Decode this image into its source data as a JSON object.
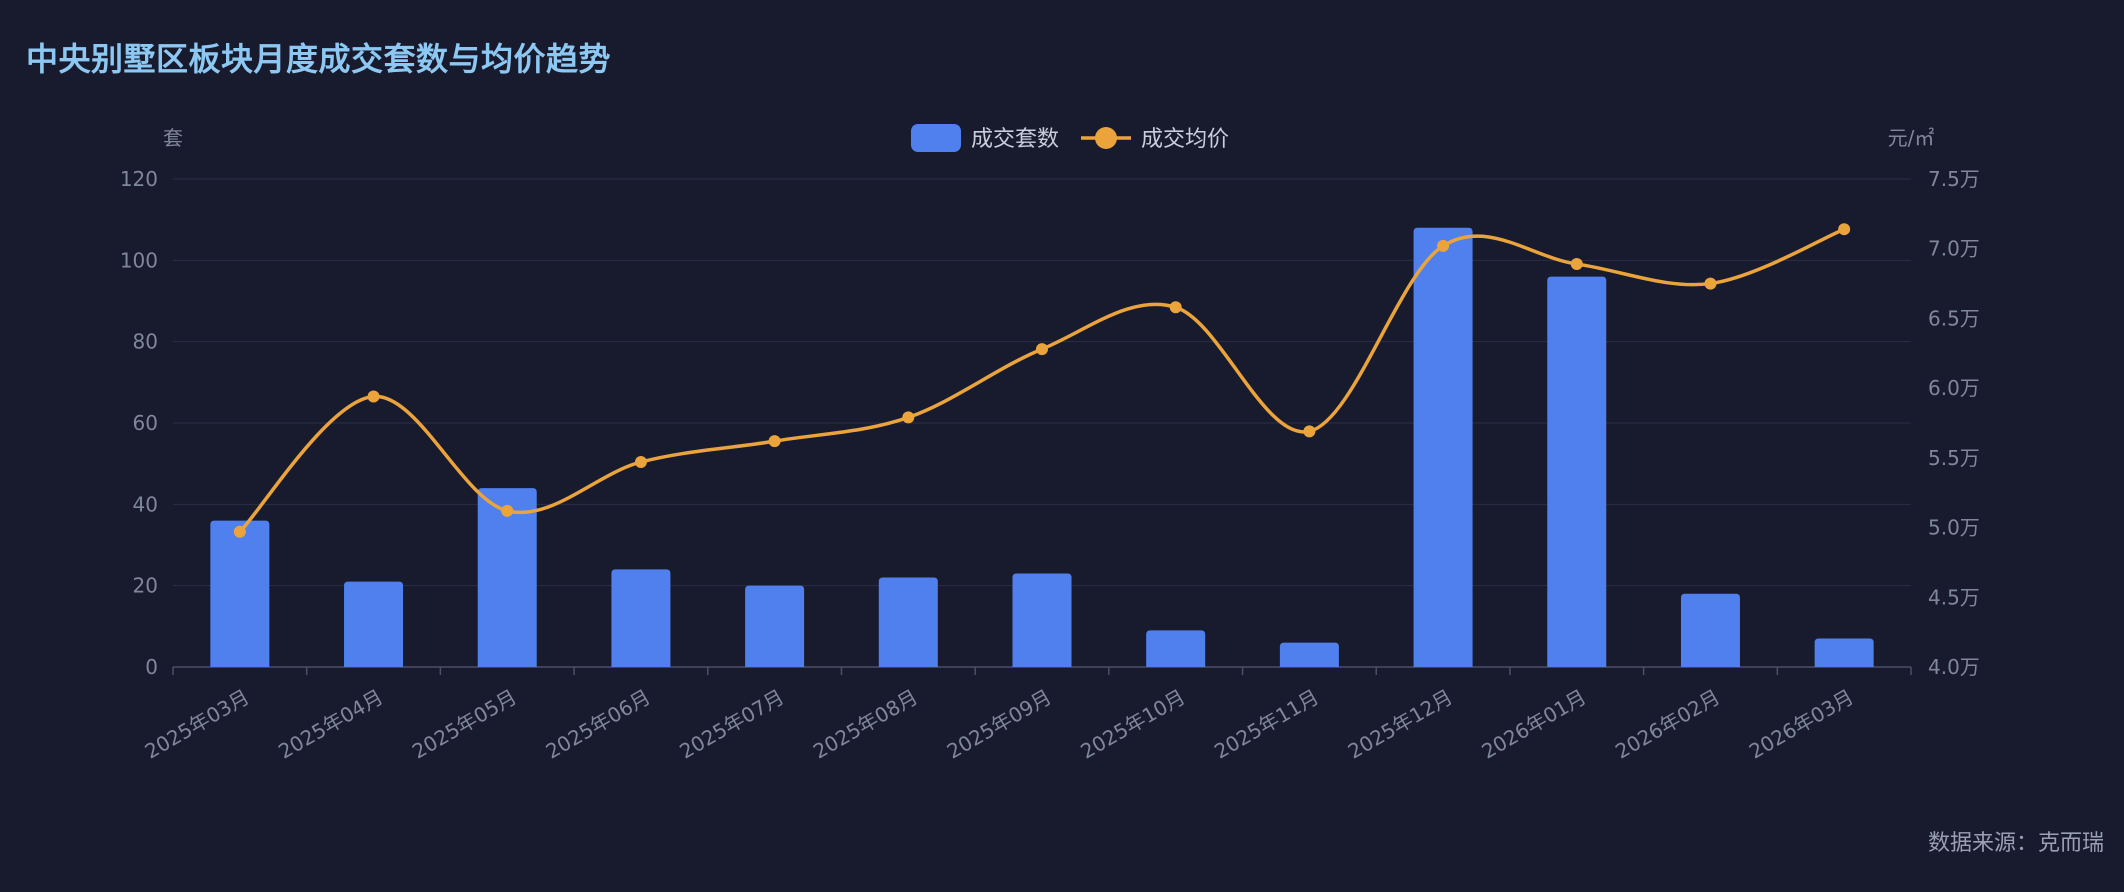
{
  "title": "中央别墅区板块月度成交套数与均价趋势",
  "source_label": "数据来源：克而瑞",
  "colors": {
    "background": "#181B2D",
    "title": "#8CC8F2",
    "bar": "#4F80EE",
    "line": "#EBA43C",
    "grid": "#2A2F45",
    "axis_text": "#7F879B"
  },
  "chart_data": {
    "type": "bar",
    "categories": [
      "2025年03月",
      "2025年04月",
      "2025年05月",
      "2025年06月",
      "2025年07月",
      "2025年08月",
      "2025年09月",
      "2025年10月",
      "2025年11月",
      "2025年12月",
      "2026年01月",
      "2026年02月",
      "2026年03月"
    ],
    "series": [
      {
        "name": "成交套数",
        "type": "bar",
        "axis": "left",
        "values": [
          36,
          21,
          44,
          24,
          20,
          22,
          23,
          9,
          6,
          108,
          96,
          18,
          7
        ]
      },
      {
        "name": "成交均价",
        "type": "line",
        "axis": "right",
        "values": [
          49700,
          59400,
          51200,
          54700,
          56200,
          57900,
          62800,
          65800,
          56900,
          70200,
          68900,
          67500,
          71400
        ]
      }
    ],
    "y_left": {
      "unit": "套",
      "range": [
        0,
        120
      ],
      "ticks": [
        0,
        20,
        40,
        60,
        80,
        100,
        120
      ],
      "tick_labels": [
        "0",
        "20",
        "40",
        "60",
        "80",
        "100",
        "120"
      ]
    },
    "y_right": {
      "unit": "元/㎡",
      "range": [
        40000,
        75000
      ],
      "ticks": [
        40000,
        45000,
        50000,
        55000,
        60000,
        65000,
        70000,
        75000
      ],
      "tick_labels": [
        "4.0万",
        "4.5万",
        "5.0万",
        "5.5万",
        "6.0万",
        "6.5万",
        "7.0万",
        "7.5万"
      ]
    },
    "legend": {
      "position": "top-center",
      "items": [
        "成交套数",
        "成交均价"
      ]
    },
    "grid": true
  }
}
